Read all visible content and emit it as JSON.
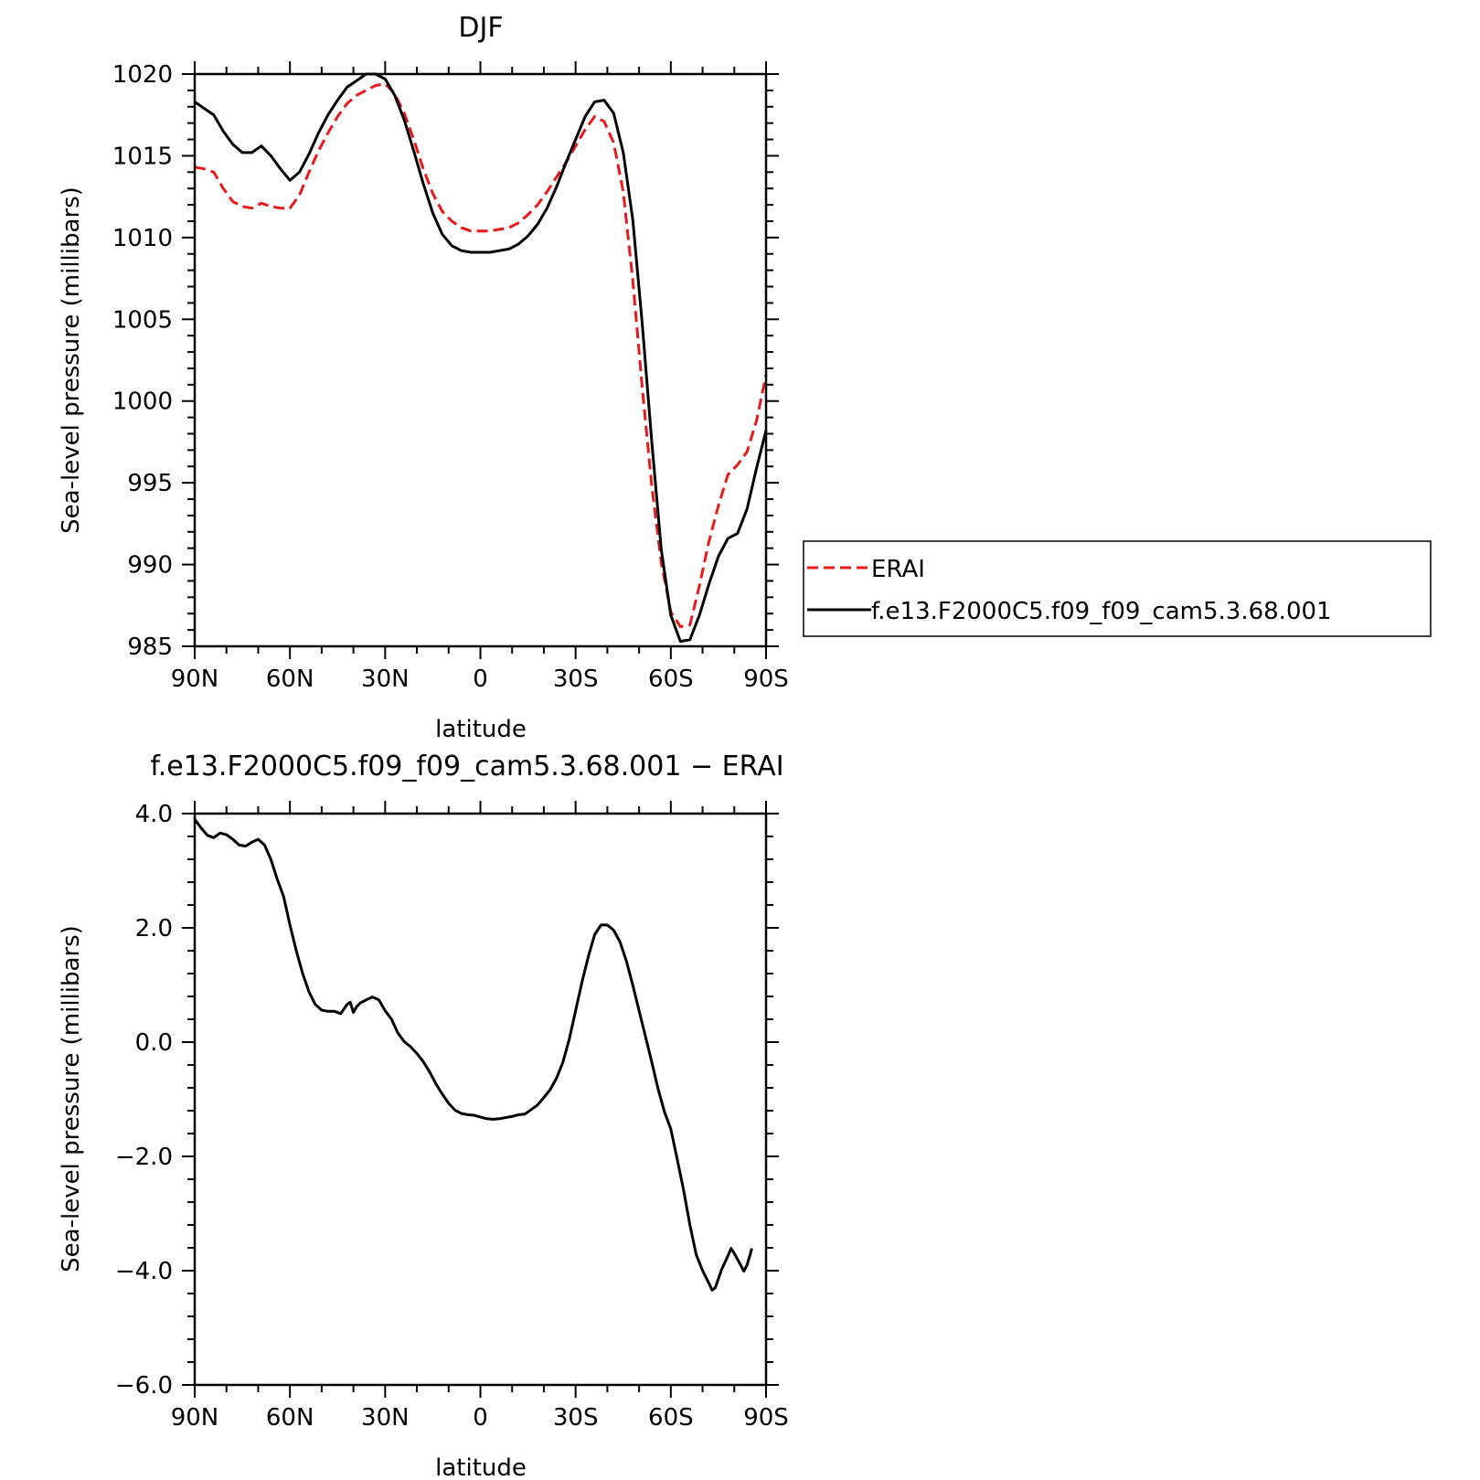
{
  "chart_data": [
    {
      "type": "line",
      "title": "DJF",
      "xlabel": "latitude",
      "ylabel": "Sea-level pressure (millibars)",
      "xlim": [
        90,
        -90
      ],
      "ylim": [
        985,
        1020
      ],
      "x_ticks": [
        {
          "value": 90,
          "label": "90N"
        },
        {
          "value": 60,
          "label": "60N"
        },
        {
          "value": 30,
          "label": "30N"
        },
        {
          "value": 0,
          "label": "0"
        },
        {
          "value": -30,
          "label": "30S"
        },
        {
          "value": -60,
          "label": "60S"
        },
        {
          "value": -90,
          "label": "90S"
        }
      ],
      "y_ticks": [
        {
          "value": 1020,
          "label": "1020"
        },
        {
          "value": 1015,
          "label": "1015"
        },
        {
          "value": 1010,
          "label": "1010"
        },
        {
          "value": 1005,
          "label": "1005"
        },
        {
          "value": 1000,
          "label": "1000"
        },
        {
          "value": 995,
          "label": "995"
        },
        {
          "value": 990,
          "label": "990"
        },
        {
          "value": 985,
          "label": "985"
        }
      ],
      "legend": {
        "position": "right",
        "entries": [
          "ERAI",
          "f.e13.F2000C5.f09_f09_cam5.3.68.001"
        ]
      },
      "series": [
        {
          "name": "ERAI",
          "color": "#e8191b",
          "dash": "dashed",
          "points": [
            [
              90,
              1014.3
            ],
            [
              87,
              1014.2
            ],
            [
              84,
              1014
            ],
            [
              81,
              1013
            ],
            [
              78,
              1012.2
            ],
            [
              75,
              1011.9
            ],
            [
              72,
              1011.8
            ],
            [
              69,
              1012.1
            ],
            [
              66,
              1011.9
            ],
            [
              63,
              1011.8
            ],
            [
              60,
              1011.8
            ],
            [
              57,
              1012.6
            ],
            [
              54,
              1014
            ],
            [
              51,
              1015.3
            ],
            [
              48,
              1016.4
            ],
            [
              45,
              1017.4
            ],
            [
              42,
              1018.2
            ],
            [
              39,
              1018.7
            ],
            [
              36,
              1019
            ],
            [
              33,
              1019.3
            ],
            [
              30,
              1019.4
            ],
            [
              27,
              1018.8
            ],
            [
              24,
              1017.6
            ],
            [
              21,
              1016
            ],
            [
              18,
              1014.2
            ],
            [
              15,
              1012.7
            ],
            [
              12,
              1011.6
            ],
            [
              9,
              1011
            ],
            [
              6,
              1010.6
            ],
            [
              3,
              1010.4
            ],
            [
              0,
              1010.4
            ],
            [
              -3,
              1010.4
            ],
            [
              -6,
              1010.5
            ],
            [
              -9,
              1010.6
            ],
            [
              -12,
              1010.9
            ],
            [
              -15,
              1011.4
            ],
            [
              -18,
              1012
            ],
            [
              -21,
              1012.8
            ],
            [
              -24,
              1013.7
            ],
            [
              -27,
              1014.6
            ],
            [
              -30,
              1015.6
            ],
            [
              -33,
              1016.6
            ],
            [
              -36,
              1017.4
            ],
            [
              -39,
              1017.1
            ],
            [
              -42,
              1015.8
            ],
            [
              -45,
              1012.8
            ],
            [
              -48,
              1007.4
            ],
            [
              -51,
              1000.8
            ],
            [
              -54,
              994.8
            ],
            [
              -57,
              990.1
            ],
            [
              -60,
              987.1
            ],
            [
              -63,
              986.2
            ],
            [
              -66,
              986.3
            ],
            [
              -69,
              988.7
            ],
            [
              -72,
              991.4
            ],
            [
              -75,
              993.6
            ],
            [
              -78,
              995.5
            ],
            [
              -81,
              996.1
            ],
            [
              -84,
              996.9
            ],
            [
              -87,
              998.8
            ],
            [
              -90,
              1001.6
            ]
          ]
        },
        {
          "name": "f.e13.F2000C5.f09_f09_cam5.3.68.001",
          "color": "#000000",
          "dash": "solid",
          "points": [
            [
              90,
              1018.3
            ],
            [
              87,
              1017.9
            ],
            [
              84,
              1017.5
            ],
            [
              81,
              1016.5
            ],
            [
              78,
              1015.7
            ],
            [
              75,
              1015.2
            ],
            [
              72,
              1015.2
            ],
            [
              69,
              1015.6
            ],
            [
              66,
              1015
            ],
            [
              63,
              1014.2
            ],
            [
              60,
              1013.5
            ],
            [
              57,
              1014
            ],
            [
              54,
              1015.1
            ],
            [
              51,
              1016.4
            ],
            [
              48,
              1017.5
            ],
            [
              45,
              1018.4
            ],
            [
              42,
              1019.2
            ],
            [
              39,
              1019.6
            ],
            [
              36,
              1020
            ],
            [
              33,
              1020
            ],
            [
              30,
              1019.7
            ],
            [
              27,
              1018.7
            ],
            [
              24,
              1017.2
            ],
            [
              21,
              1015.3
            ],
            [
              18,
              1013.3
            ],
            [
              15,
              1011.5
            ],
            [
              12,
              1010.2
            ],
            [
              9,
              1009.5
            ],
            [
              6,
              1009.2
            ],
            [
              3,
              1009.1
            ],
            [
              0,
              1009.1
            ],
            [
              -3,
              1009.1
            ],
            [
              -6,
              1009.2
            ],
            [
              -9,
              1009.3
            ],
            [
              -12,
              1009.6
            ],
            [
              -15,
              1010.1
            ],
            [
              -18,
              1010.8
            ],
            [
              -21,
              1011.8
            ],
            [
              -24,
              1013.1
            ],
            [
              -27,
              1014.6
            ],
            [
              -30,
              1016
            ],
            [
              -33,
              1017.4
            ],
            [
              -36,
              1018.3
            ],
            [
              -39,
              1018.4
            ],
            [
              -42,
              1017.6
            ],
            [
              -45,
              1015.2
            ],
            [
              -48,
              1011.1
            ],
            [
              -51,
              1004.7
            ],
            [
              -54,
              997.5
            ],
            [
              -57,
              990.9
            ],
            [
              -60,
              986.9
            ],
            [
              -63,
              985.3
            ],
            [
              -66,
              985.4
            ],
            [
              -69,
              986.9
            ],
            [
              -72,
              988.8
            ],
            [
              -75,
              990.5
            ],
            [
              -78,
              991.6
            ],
            [
              -81,
              991.9
            ],
            [
              -84,
              993.4
            ],
            [
              -87,
              995.9
            ],
            [
              -90,
              998.2
            ]
          ]
        }
      ]
    },
    {
      "type": "line",
      "title": "f.e13.F2000C5.f09_f09_cam5.3.68.001  − ERAI",
      "xlabel": "latitude",
      "ylabel": "Sea-level pressure (millibars)",
      "xlim": [
        90,
        -90
      ],
      "ylim": [
        -6.0,
        4.0
      ],
      "x_ticks": [
        {
          "value": 90,
          "label": "90N"
        },
        {
          "value": 60,
          "label": "60N"
        },
        {
          "value": 30,
          "label": "30N"
        },
        {
          "value": 0,
          "label": "0"
        },
        {
          "value": -30,
          "label": "30S"
        },
        {
          "value": -60,
          "label": "60S"
        },
        {
          "value": -90,
          "label": "90S"
        }
      ],
      "y_ticks": [
        {
          "value": 4,
          "label": "4.0"
        },
        {
          "value": 2,
          "label": "2.0"
        },
        {
          "value": 0,
          "label": "0.0"
        },
        {
          "value": -2,
          "label": "−2.0"
        },
        {
          "value": -4,
          "label": "−4.0"
        },
        {
          "value": -6,
          "label": "−6.0"
        }
      ],
      "series": [
        {
          "color": "#000000",
          "dash": "solid",
          "points": [
            [
              90,
              3.9
            ],
            [
              88,
              3.75
            ],
            [
              86,
              3.62
            ],
            [
              84,
              3.58
            ],
            [
              82,
              3.66
            ],
            [
              80,
              3.63
            ],
            [
              78,
              3.55
            ],
            [
              76,
              3.45
            ],
            [
              74,
              3.43
            ],
            [
              72,
              3.5
            ],
            [
              70,
              3.55
            ],
            [
              68,
              3.45
            ],
            [
              66,
              3.2
            ],
            [
              64,
              2.85
            ],
            [
              62,
              2.55
            ],
            [
              60,
              2.05
            ],
            [
              58,
              1.6
            ],
            [
              56,
              1.2
            ],
            [
              54,
              0.88
            ],
            [
              52,
              0.66
            ],
            [
              50,
              0.56
            ],
            [
              48,
              0.54
            ],
            [
              46,
              0.54
            ],
            [
              44,
              0.5
            ],
            [
              42,
              0.66
            ],
            [
              41,
              0.7
            ],
            [
              40,
              0.52
            ],
            [
              39,
              0.62
            ],
            [
              38,
              0.68
            ],
            [
              36,
              0.74
            ],
            [
              34,
              0.79
            ],
            [
              32,
              0.74
            ],
            [
              30,
              0.55
            ],
            [
              28,
              0.4
            ],
            [
              26,
              0.16
            ],
            [
              24,
              0.01
            ],
            [
              22,
              -0.08
            ],
            [
              20,
              -0.2
            ],
            [
              18,
              -0.34
            ],
            [
              16,
              -0.52
            ],
            [
              14,
              -0.73
            ],
            [
              12,
              -0.91
            ],
            [
              10,
              -1.07
            ],
            [
              8,
              -1.19
            ],
            [
              6,
              -1.25
            ],
            [
              4,
              -1.27
            ],
            [
              2,
              -1.28
            ],
            [
              0,
              -1.31
            ],
            [
              -2,
              -1.34
            ],
            [
              -4,
              -1.35
            ],
            [
              -6,
              -1.34
            ],
            [
              -8,
              -1.32
            ],
            [
              -10,
              -1.3
            ],
            [
              -12,
              -1.27
            ],
            [
              -14,
              -1.26
            ],
            [
              -16,
              -1.18
            ],
            [
              -18,
              -1.1
            ],
            [
              -20,
              -0.97
            ],
            [
              -22,
              -0.83
            ],
            [
              -24,
              -0.63
            ],
            [
              -26,
              -0.35
            ],
            [
              -28,
              0.05
            ],
            [
              -30,
              0.55
            ],
            [
              -32,
              1.05
            ],
            [
              -34,
              1.5
            ],
            [
              -36,
              1.88
            ],
            [
              -38,
              2.05
            ],
            [
              -40,
              2.05
            ],
            [
              -42,
              1.96
            ],
            [
              -44,
              1.75
            ],
            [
              -46,
              1.42
            ],
            [
              -48,
              1.0
            ],
            [
              -50,
              0.55
            ],
            [
              -52,
              0.1
            ],
            [
              -54,
              -0.35
            ],
            [
              -56,
              -0.82
            ],
            [
              -58,
              -1.22
            ],
            [
              -60,
              -1.52
            ],
            [
              -62,
              -2.05
            ],
            [
              -64,
              -2.58
            ],
            [
              -66,
              -3.2
            ],
            [
              -68,
              -3.72
            ],
            [
              -70,
              -4.0
            ],
            [
              -72,
              -4.22
            ],
            [
              -73,
              -4.34
            ],
            [
              -74,
              -4.3
            ],
            [
              -76,
              -3.98
            ],
            [
              -78,
              -3.74
            ],
            [
              -79,
              -3.61
            ],
            [
              -80,
              -3.7
            ],
            [
              -82,
              -3.9
            ],
            [
              -83,
              -4.01
            ],
            [
              -84,
              -3.9
            ],
            [
              -85,
              -3.72
            ],
            [
              -85.5,
              -3.61
            ]
          ]
        }
      ]
    }
  ]
}
